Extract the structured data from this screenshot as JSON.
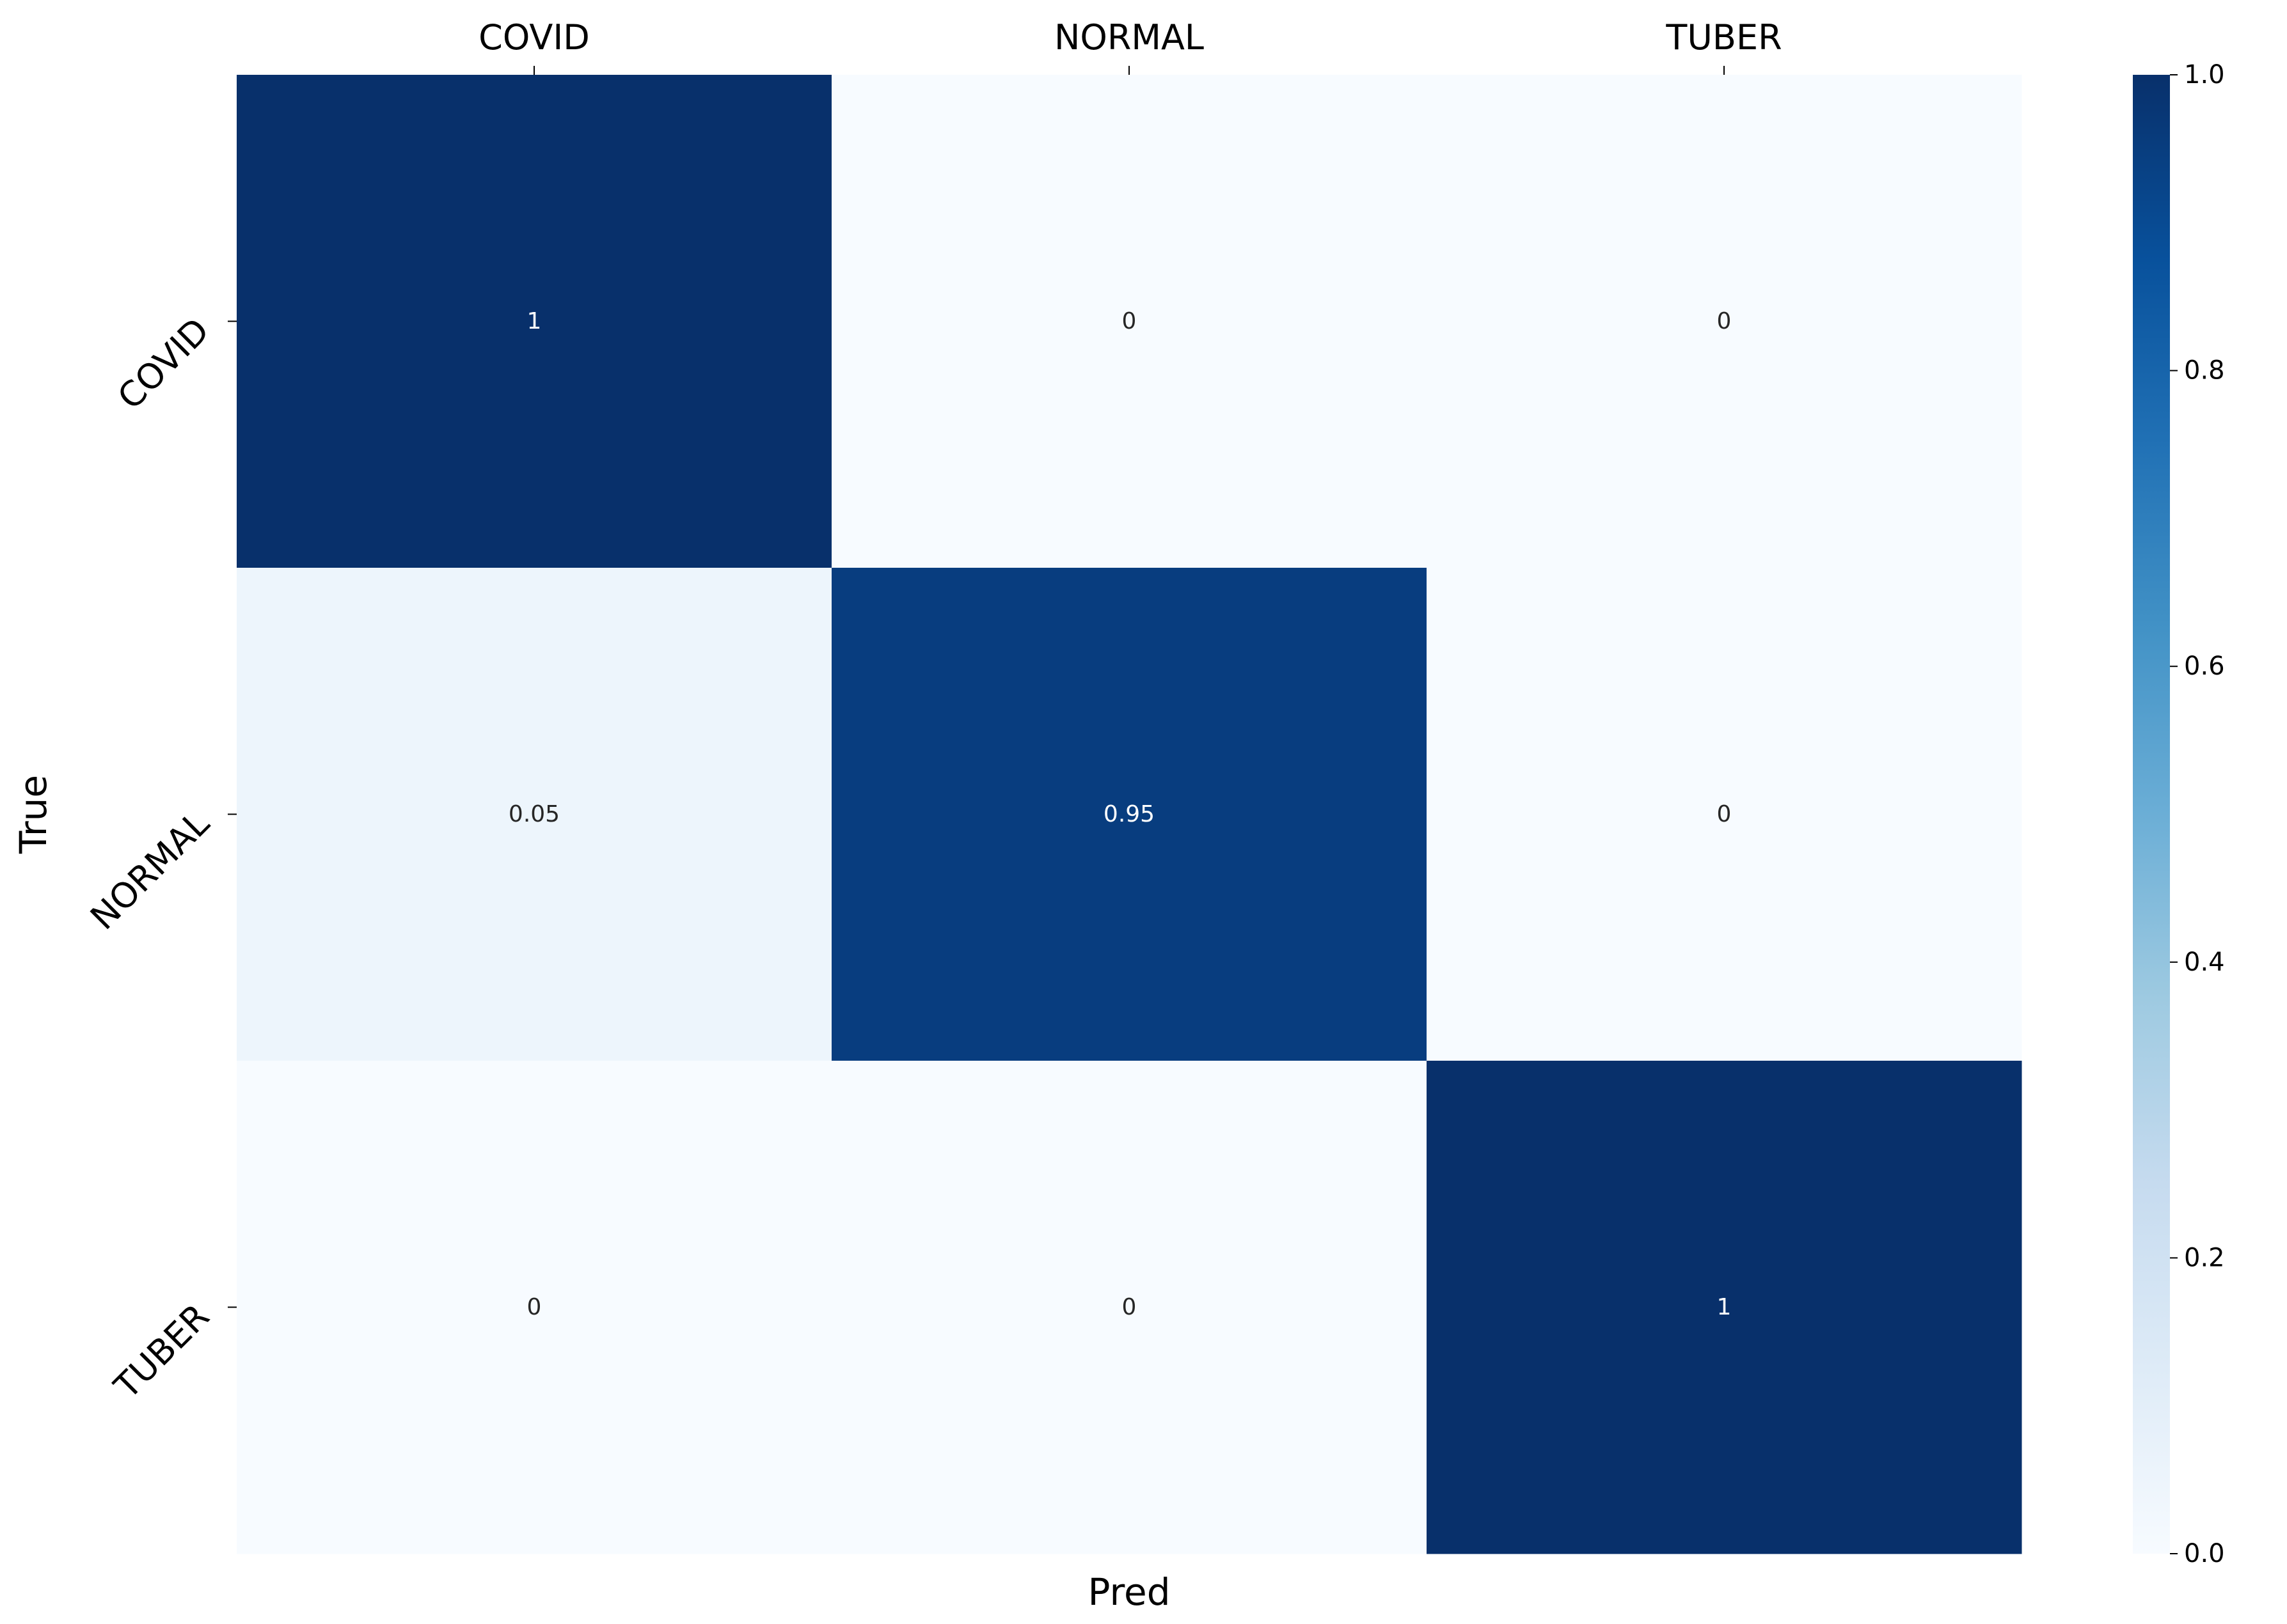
{
  "chart_data": {
    "type": "heatmap",
    "x_categories": [
      "COVID",
      "NORMAL",
      "TUBER"
    ],
    "y_categories": [
      "COVID",
      "NORMAL",
      "TUBER"
    ],
    "values": [
      [
        1,
        0,
        0
      ],
      [
        0.05,
        0.95,
        0
      ],
      [
        0,
        0,
        1
      ]
    ],
    "cell_labels": [
      [
        "1",
        "0",
        "0"
      ],
      [
        "0.05",
        "0.95",
        "0"
      ],
      [
        "0",
        "0",
        "1"
      ]
    ],
    "xlabel": "Pred",
    "ylabel": "True",
    "x_ticks_position": "top",
    "colormap": "Blues",
    "colorbar": {
      "range": [
        0,
        1
      ],
      "ticks": [
        "0.0",
        "0.2",
        "0.4",
        "0.6",
        "0.8",
        "1.0"
      ],
      "stops": [
        "#f7fbff",
        "#deebf7",
        "#c6dbef",
        "#9ecae1",
        "#6baed6",
        "#4292c6",
        "#2171b5",
        "#08519c",
        "#08306b"
      ]
    }
  }
}
